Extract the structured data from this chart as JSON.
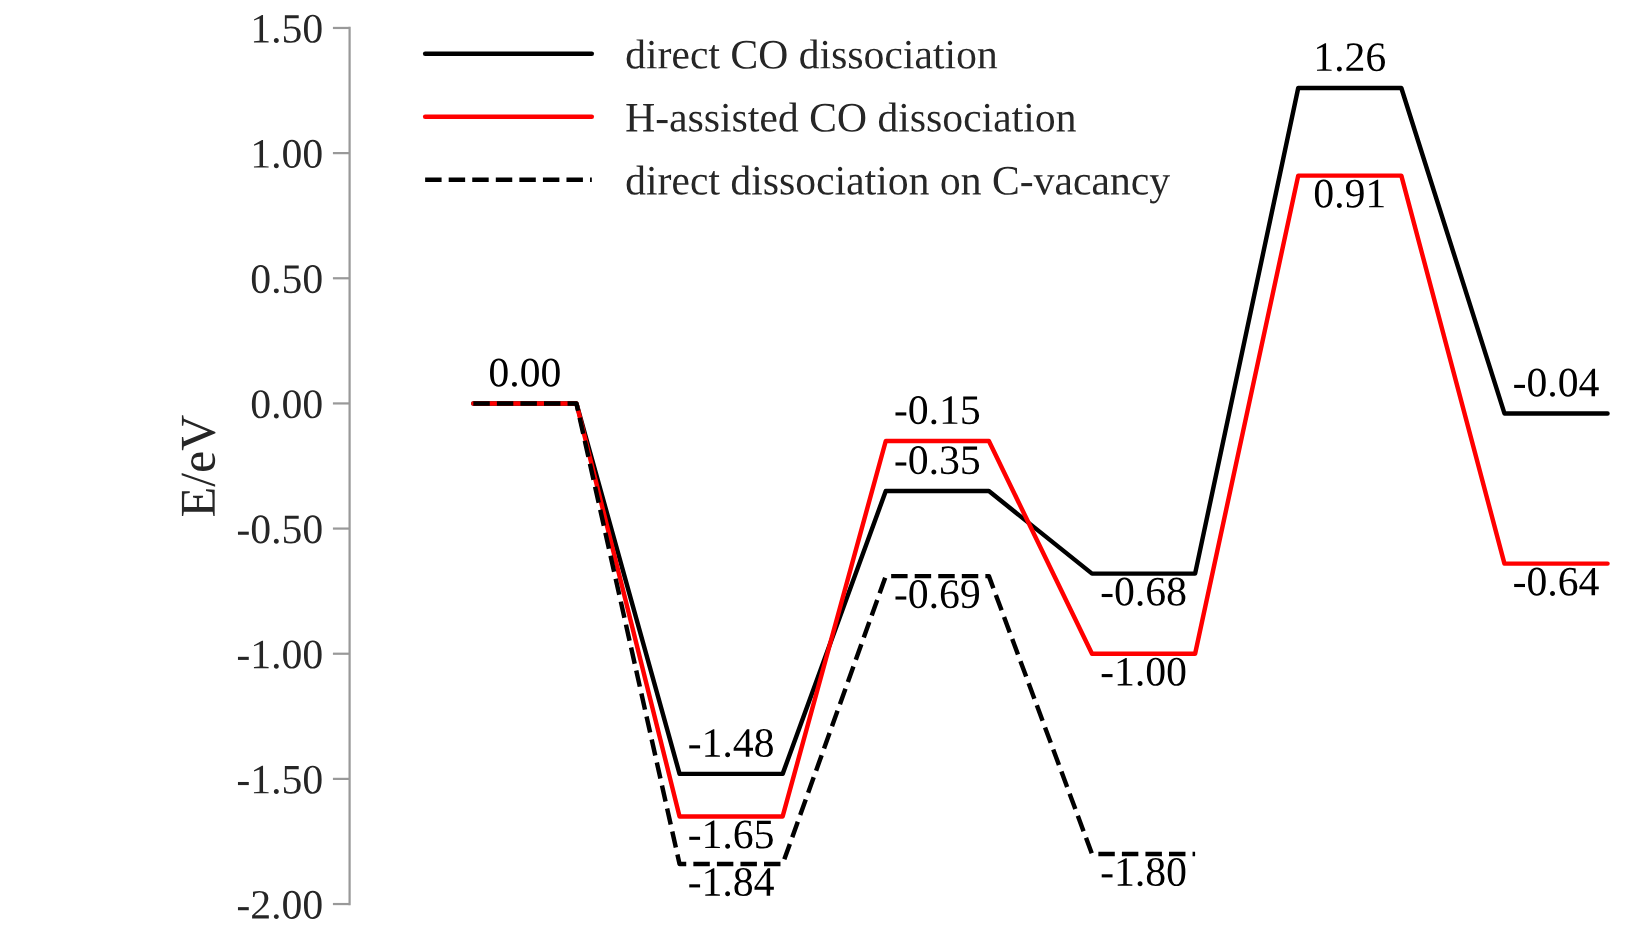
{
  "chart_data": {
    "type": "line",
    "ylabel": "E/eV",
    "categories": [
      null,
      null,
      null,
      null,
      null,
      null,
      null,
      null,
      null,
      null,
      null,
      null
    ],
    "series": [
      {
        "name": "direct CO dissociation",
        "color": "#000000",
        "line_style": "solid",
        "values": [
          0.0,
          0.0,
          -1.48,
          -1.48,
          -0.35,
          -0.35,
          -0.68,
          -0.68,
          1.26,
          1.26,
          -0.04,
          -0.04
        ],
        "value_labels": [
          "0.00",
          null,
          "-1.48",
          null,
          "-0.35",
          null,
          "-0.68",
          null,
          "1.26",
          null,
          "-0.04",
          null
        ]
      },
      {
        "name": "H-assisted CO dissociation",
        "color": "#ff0000",
        "line_style": "solid",
        "values": [
          0.0,
          0.0,
          -1.65,
          -1.65,
          -0.15,
          -0.15,
          -1.0,
          -1.0,
          0.91,
          0.91,
          -0.64,
          -0.64
        ],
        "value_labels": [
          null,
          null,
          "-1.65",
          null,
          "-0.15",
          null,
          "-1.00",
          null,
          "0.91",
          null,
          "-0.64",
          null
        ]
      },
      {
        "name": "direct dissociation on C-vacancy",
        "color": "#000000",
        "line_style": "dashed",
        "values": [
          0.0,
          0.0,
          -1.84,
          -1.84,
          -0.69,
          -0.69,
          -1.8,
          -1.8,
          null,
          null,
          null,
          null
        ],
        "value_labels": [
          null,
          null,
          "-1.84",
          null,
          "-0.69",
          null,
          "-1.80",
          null,
          null,
          null,
          null,
          null
        ]
      }
    ],
    "ylim": [
      -2.0,
      1.5
    ],
    "yticks": [
      {
        "value": -2.0,
        "label": "-2.00"
      },
      {
        "value": -1.5,
        "label": "-1.50"
      },
      {
        "value": -1.0,
        "label": "-1.00"
      },
      {
        "value": -0.5,
        "label": "-0.50"
      },
      {
        "value": 0.0,
        "label": "0.00"
      },
      {
        "value": 0.5,
        "label": "0.50"
      },
      {
        "value": 1.0,
        "label": "1.00"
      },
      {
        "value": 1.5,
        "label": "1.50"
      }
    ],
    "legend": "top left",
    "tick_labels": "y",
    "grid": false
  }
}
